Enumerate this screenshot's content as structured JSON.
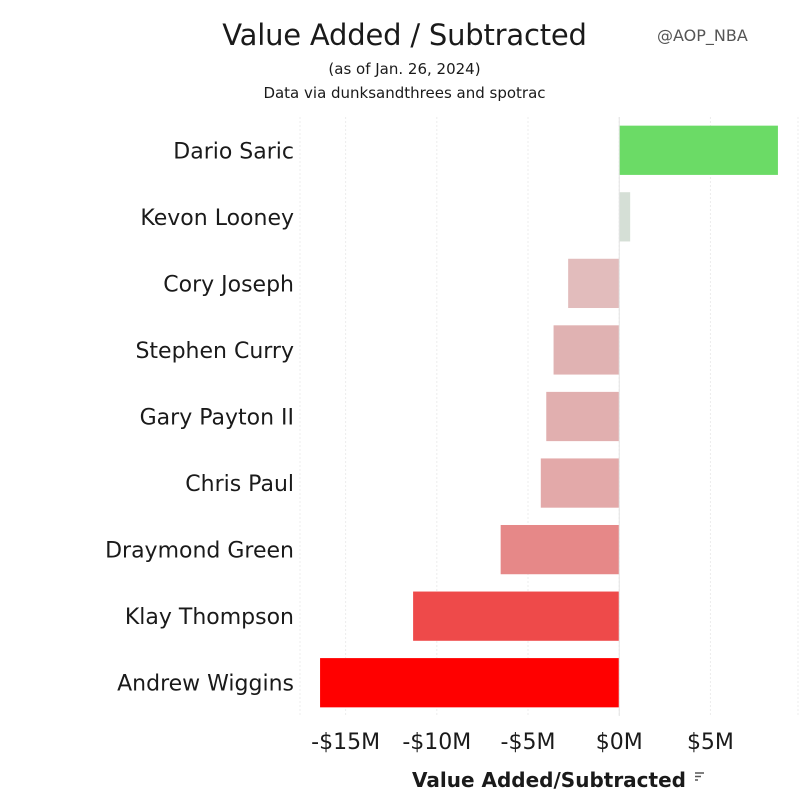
{
  "header": {
    "title": "Value Added / Subtracted",
    "subtitle": "(as of Jan. 26, 2024)",
    "source": "Data via dunksandthrees and spotrac",
    "handle": "@AOP_NBA"
  },
  "chart_data": {
    "type": "bar",
    "orientation": "horizontal",
    "title": "Value Added / Subtracted",
    "xlabel": "Value Added/Subtracted",
    "ylabel": "",
    "categories": [
      "Dario Saric",
      "Kevon Looney",
      "Cory Joseph",
      "Stephen Curry",
      "Gary Payton II",
      "Chris Paul",
      "Draymond Green",
      "Klay Thompson",
      "Andrew Wiggins"
    ],
    "values": [
      8.7,
      0.6,
      -2.8,
      -3.6,
      -4.0,
      -4.3,
      -6.5,
      -11.3,
      -16.4
    ],
    "units": "$M",
    "xlim": [
      -17.5,
      9.8
    ],
    "xticks": [
      -15,
      -10,
      -5,
      0,
      5
    ],
    "xtick_labels": [
      "-$15M",
      "-$10M",
      "-$5M",
      "$0M",
      "$5M"
    ],
    "grid": "vertical",
    "bar_colors": [
      "#6bdb66",
      "#d5dfd6",
      "#e2bcbc",
      "#e0b2b2",
      "#e1afaf",
      "#e3a9a9",
      "#e68888",
      "#ee4a4a",
      "#ff0000"
    ]
  }
}
